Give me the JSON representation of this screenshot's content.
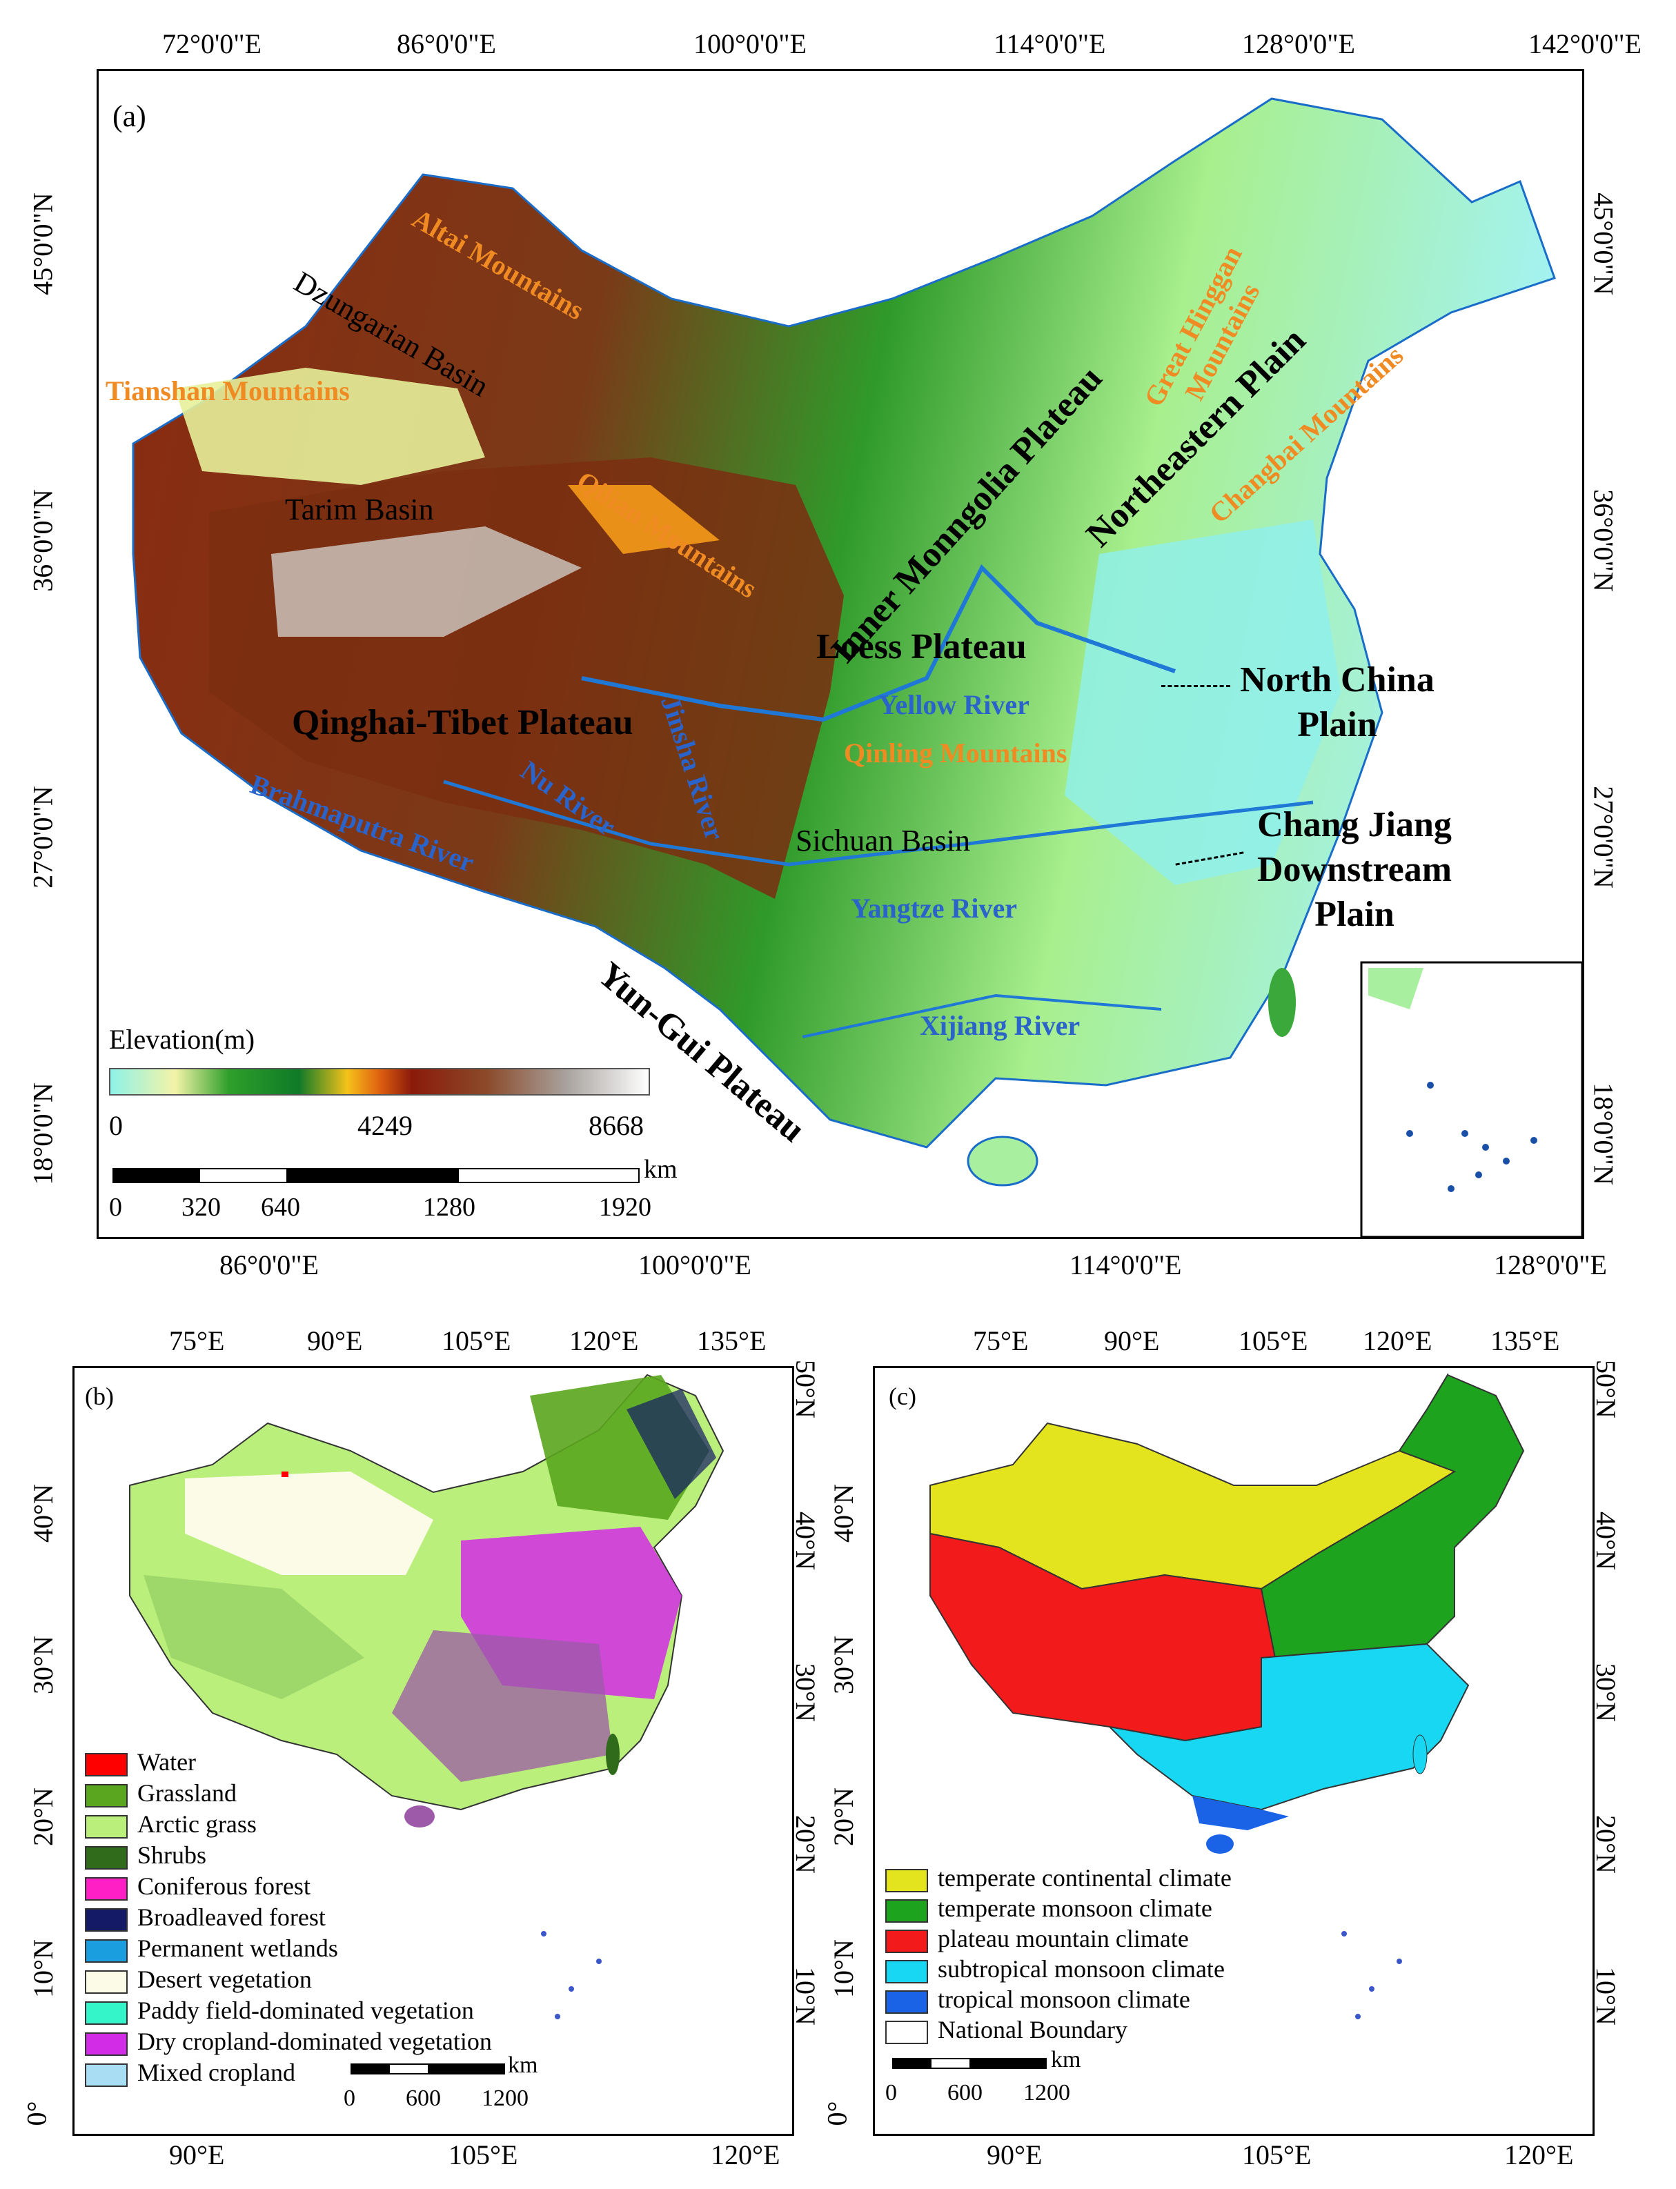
{
  "panel_a": {
    "label": "(a)",
    "top_ticks": [
      "72°0'0\"E",
      "86°0'0\"E",
      "100°0'0\"E",
      "114°0'0\"E",
      "128°0'0\"E",
      "142°0'0\"E"
    ],
    "bottom_ticks": [
      "86°0'0\"E",
      "100°0'0\"E",
      "114°0'0\"E",
      "128°0'0\"E"
    ],
    "left_ticks": [
      "45°0'0\"N",
      "36°0'0\"N",
      "27°0'0\"N",
      "18°0'0\"N"
    ],
    "right_ticks": [
      "45°0'0\"N",
      "36°0'0\"N",
      "27°0'0\"N",
      "18°0'0\"N"
    ],
    "elevation": {
      "title": "Elevation(m)",
      "min": "0",
      "mid": "4249",
      "max": "8668"
    },
    "scalebar": {
      "unit": "km",
      "ticks": [
        "0",
        "320",
        "640",
        "1280",
        "1920"
      ]
    },
    "labels": {
      "altai": "Altai Mountains",
      "dzungarian": "Dzungarian Basin",
      "tianshan": "Tianshan Mountains",
      "tarim": "Tarim Basin",
      "qilian": "Qilian Mountains",
      "inner_mongolia": "Inner Monngolia Plateau",
      "great_hinggan": "Great Hinggan Mountains",
      "northeastern": "Northeastern Plain",
      "changbai": "Changbai Mountains",
      "loess": "Loess Plateau",
      "north_china": "North China Plain",
      "qinghai": "Qinghai-Tibet  Plateau",
      "yellow_river": "Yellow River",
      "qinling": "Qinling Mountains",
      "nu_river": "Nu River",
      "jinsha_river": "Jinsha River",
      "brahmaputra": "Brahmaputra River",
      "sichuan": "Sichuan Basin",
      "chang_jiang": "Chang Jiang Downstream Plain",
      "yangtze": "Yangtze River",
      "yungui": "Yun-Gui Plateau",
      "xijiang": "Xijiang River"
    }
  },
  "panel_b": {
    "label": "(b)",
    "top_ticks": [
      "75°E",
      "90°E",
      "105°E",
      "120°E",
      "135°E"
    ],
    "bottom_ticks": [
      "90°E",
      "105°E",
      "120°E"
    ],
    "left_ticks": [
      "40°N",
      "30°N",
      "20°N",
      "10°N",
      "0°"
    ],
    "right_ticks": [
      "50°N",
      "40°N",
      "30°N",
      "20°N",
      "10°N"
    ],
    "legend": [
      {
        "label": "Water",
        "color": "#ff0000"
      },
      {
        "label": "Grassland",
        "color": "#5aa61e"
      },
      {
        "label": "Arctic grass",
        "color": "#b9ef7a"
      },
      {
        "label": "Shrubs",
        "color": "#2f6b1a"
      },
      {
        "label": "Coniferous forest",
        "color": "#ff1fc4"
      },
      {
        "label": "Broadleaved forest",
        "color": "#141a66"
      },
      {
        "label": "Permanent wetlands",
        "color": "#1a9ee0"
      },
      {
        "label": "Desert vegetation",
        "color": "#fbfbe8"
      },
      {
        "label": "Paddy field-dominated vegetation",
        "color": "#33f5c9"
      },
      {
        "label": "Dry cropland-dominated vegetation",
        "color": "#d22ce6"
      },
      {
        "label": "Mixed cropland",
        "color": "#a8ddf3"
      }
    ],
    "scalebar": {
      "unit": "km",
      "ticks": [
        "0",
        "600",
        "1200"
      ]
    }
  },
  "panel_c": {
    "label": "(c)",
    "top_ticks": [
      "75°E",
      "90°E",
      "105°E",
      "120°E",
      "135°E"
    ],
    "bottom_ticks": [
      "90°E",
      "105°E",
      "120°E"
    ],
    "left_ticks": [
      "40°N",
      "30°N",
      "20°N",
      "10°N",
      "0°"
    ],
    "right_ticks": [
      "50°N",
      "40°N",
      "30°N",
      "20°N",
      "10°N"
    ],
    "legend": [
      {
        "label": "temperate continental climate",
        "color": "#e3e41e"
      },
      {
        "label": "temperate monsoon climate",
        "color": "#1ea31e"
      },
      {
        "label": "plateau mountain climate",
        "color": "#f21a1a"
      },
      {
        "label": "subtropical monsoon climate",
        "color": "#17d7f2"
      },
      {
        "label": "tropical monsoon climate",
        "color": "#1a63e6"
      },
      {
        "label": "National Boundary",
        "color": "#ffffff"
      }
    ],
    "scalebar": {
      "unit": "km",
      "ticks": [
        "0",
        "600",
        "1200"
      ]
    }
  }
}
